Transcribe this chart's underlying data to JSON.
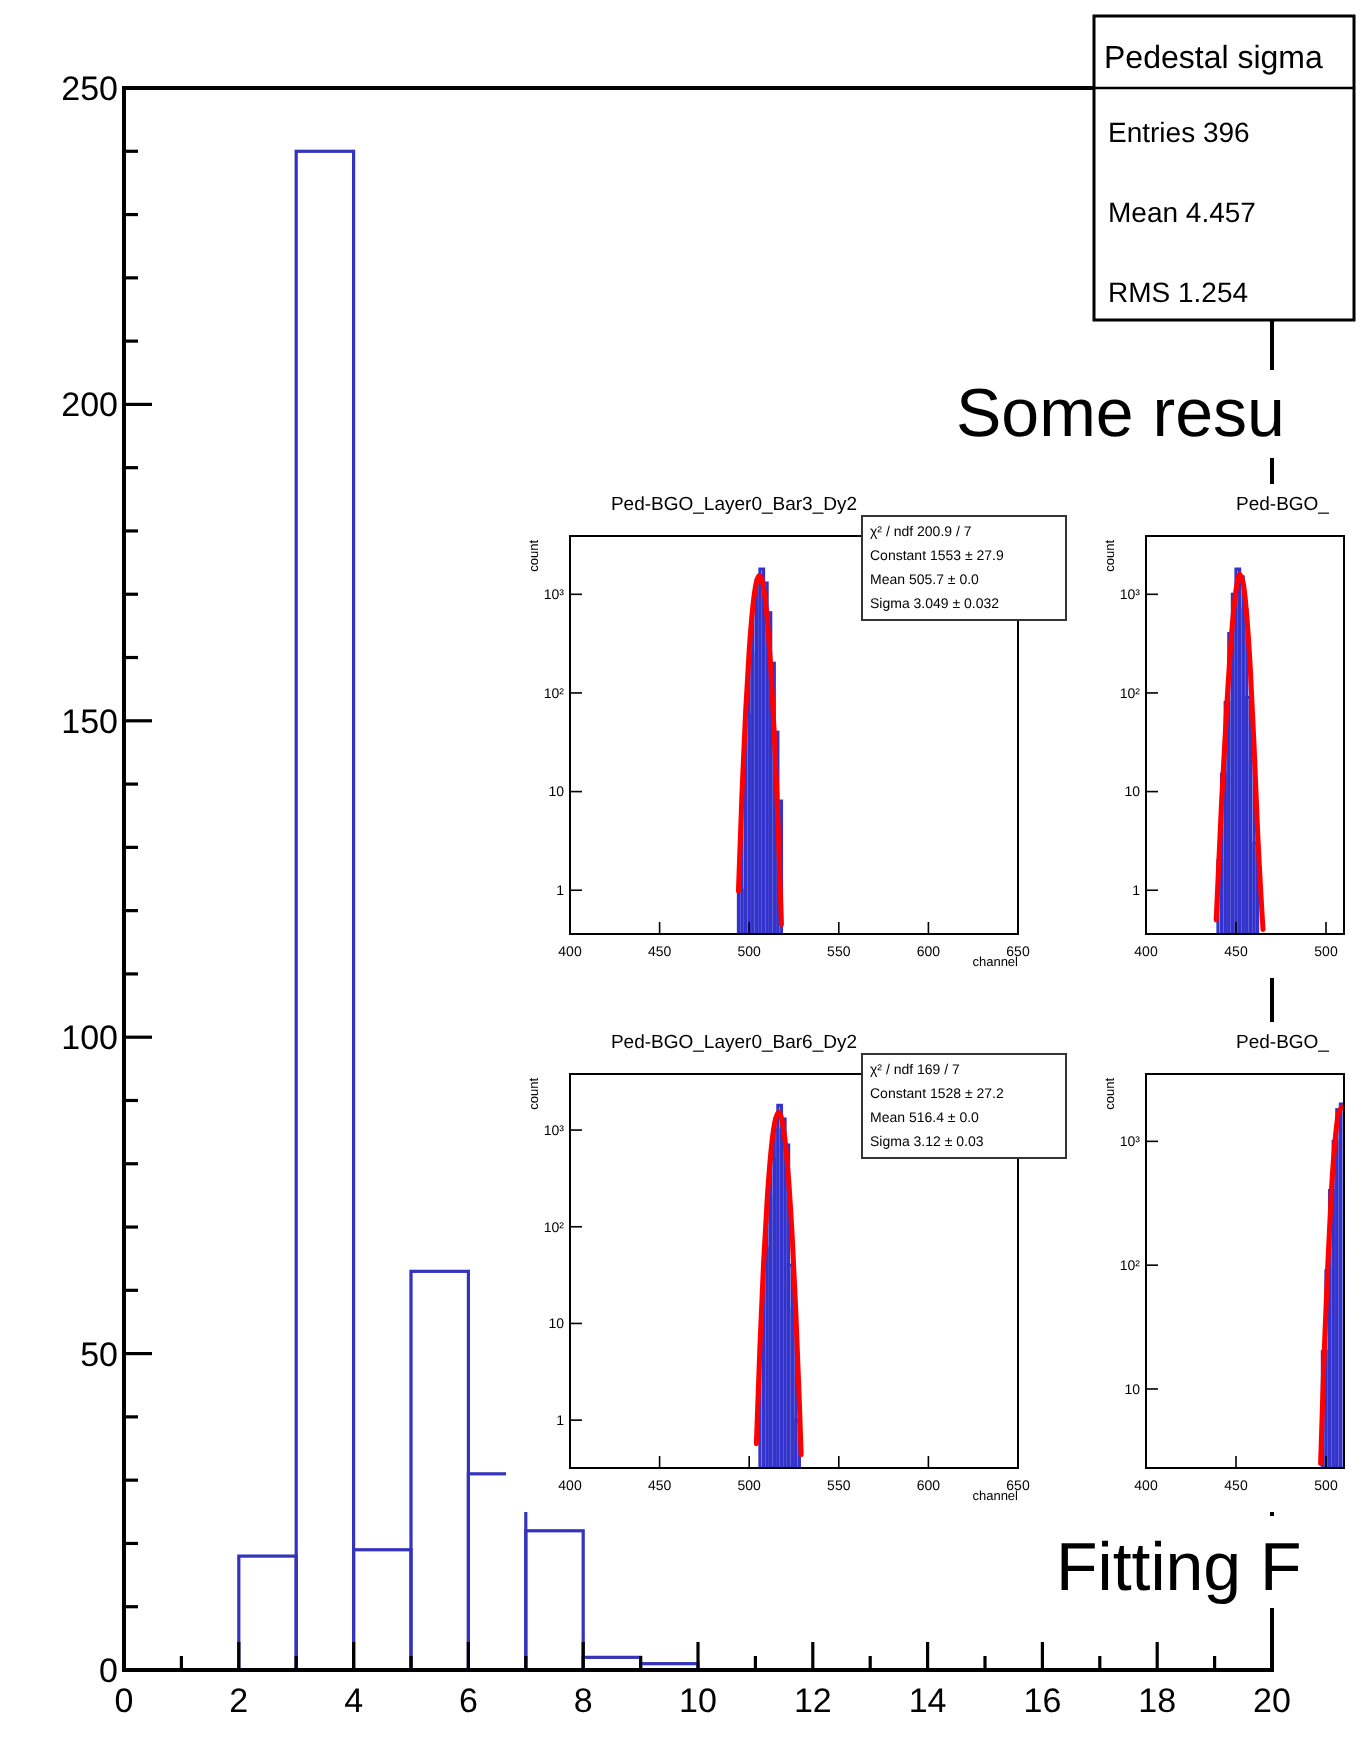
{
  "chart_data": [
    {
      "type": "histogram",
      "title": "Pedestal sigma",
      "color": "#3333bb",
      "bins": [
        0,
        1,
        2,
        3,
        4,
        5,
        6,
        7,
        8,
        9,
        10,
        11,
        12,
        13,
        14,
        15,
        16,
        17,
        18,
        19,
        20
      ],
      "values": [
        0,
        0,
        18,
        240,
        19,
        63,
        31,
        22,
        2,
        1,
        0,
        0,
        0,
        0,
        0,
        0,
        0,
        0,
        0,
        0
      ],
      "xlim": [
        0,
        20
      ],
      "ylim": [
        0,
        250
      ],
      "xticks": [
        0,
        {
          "value": 1,
          "label": null
        },
        2,
        {
          "value": 3,
          "label": null
        },
        4,
        {
          "value": 5,
          "label": null
        },
        6,
        {
          "value": 7,
          "label": null
        },
        8,
        {
          "value": 9,
          "label": null
        },
        10,
        {
          "value": 11,
          "label": null
        },
        12,
        {
          "value": 13,
          "label": null
        },
        14,
        {
          "value": 15,
          "label": null
        },
        16,
        {
          "value": 17,
          "label": null
        },
        18,
        {
          "value": 19,
          "label": null
        },
        20
      ],
      "yticks": [
        0,
        {
          "value": 10,
          "label": null
        },
        {
          "value": 20,
          "label": null
        },
        {
          "value": 30,
          "label": null
        },
        {
          "value": 40,
          "label": null
        },
        50,
        {
          "value": 60,
          "label": null
        },
        {
          "value": 70,
          "label": null
        },
        {
          "value": 80,
          "label": null
        },
        {
          "value": 90,
          "label": null
        },
        100,
        {
          "value": 110,
          "label": null
        },
        {
          "value": 120,
          "label": null
        },
        {
          "value": 130,
          "label": null
        },
        {
          "value": 140,
          "label": null
        },
        150,
        {
          "value": 160,
          "label": null
        },
        {
          "value": 170,
          "label": null
        },
        {
          "value": 180,
          "label": null
        },
        {
          "value": 190,
          "label": null
        },
        200,
        {
          "value": 210,
          "label": null
        },
        {
          "value": 220,
          "label": null
        },
        {
          "value": 230,
          "label": null
        },
        {
          "value": 240,
          "label": null
        },
        250
      ],
      "annotations": [
        "Entries 396",
        "Mean 4.457",
        "RMS 1.254",
        "Some resu",
        "Fitting F"
      ]
    },
    {
      "type": "histogram",
      "title": "Ped-BGO_Layer0_Bar3_Dy2",
      "xlabel": "channel",
      "ylabel": "count",
      "log": "y",
      "xlim": [
        400,
        650
      ],
      "ylim": [
        0.36,
        3900
      ],
      "xticks": [
        400,
        450,
        500,
        550,
        600,
        650
      ],
      "yticks": [
        1,
        10,
        {
          "value": 100,
          "label": "10²"
        },
        {
          "value": 1000,
          "label": "10³"
        }
      ],
      "series": [
        {
          "type": "histogram",
          "color": "#3333cc",
          "bins": [
            494,
            496,
            498,
            500,
            502,
            504,
            506,
            508,
            510,
            512,
            514,
            516,
            518
          ],
          "values": [
            1,
            8,
            60,
            250,
            700,
            1400,
            1800,
            1300,
            650,
            200,
            40,
            8
          ]
        },
        {
          "type": "line",
          "color": "#ff0000",
          "x": [
            494,
            496,
            498,
            500,
            502,
            504,
            505.7,
            507,
            508,
            510,
            512,
            514,
            516,
            518
          ],
          "values": [
            0.98,
            9.9,
            64,
            270,
            744,
            1330,
            1553,
            1418,
            1168,
            574,
            183,
            38,
            5.2,
            0.45
          ]
        }
      ],
      "annotations": [
        "χ² / ndf 200.9 / 7",
        "Constant 1553 ± 27.9",
        "Mean 505.7 ± 0.0",
        "Sigma 3.049 ± 0.032"
      ]
    },
    {
      "type": "histogram",
      "title": "Ped-BGO_Layer0_Bar6_Dy2",
      "xlabel": "channel",
      "ylabel": "count",
      "log": "y",
      "xlim": [
        400,
        650
      ],
      "ylim": [
        0.32,
        3800
      ],
      "xticks": [
        400,
        450,
        500,
        550,
        600,
        650
      ],
      "yticks": [
        1,
        10,
        {
          "value": 100,
          "label": "10²"
        },
        {
          "value": 1000,
          "label": "10³"
        }
      ],
      "series": [
        {
          "type": "histogram",
          "color": "#3333cc",
          "bins": [
            506,
            508,
            510,
            512,
            514,
            516,
            518,
            520,
            522,
            524,
            526,
            528
          ],
          "values": [
            5,
            60,
            200,
            500,
            1000,
            1800,
            1300,
            700,
            40,
            14,
            1
          ]
        },
        {
          "type": "line",
          "color": "#ff0000",
          "x": [
            504,
            506,
            508,
            510,
            512,
            514,
            516.4,
            518,
            520,
            522,
            524,
            526,
            528,
            529
          ],
          "values": [
            0.57,
            5.9,
            41,
            186,
            566,
            1137,
            1528,
            1340,
            785,
            305,
            79,
            13.4,
            1.5,
            0.44
          ]
        }
      ],
      "annotations": [
        "χ² / ndf 169 / 7",
        "Constant 1528 ± 27.2",
        "Mean 516.4 ± 0.0",
        "Sigma 3.12 ± 0.03"
      ]
    },
    {
      "type": "histogram",
      "title": "Ped-BGO_",
      "ylabel": "count",
      "log": "y",
      "xlim": [
        400,
        510
      ],
      "ylim": [
        0.36,
        3900
      ],
      "xticks": [
        400,
        450,
        500
      ],
      "yticks": [
        1,
        10,
        {
          "value": 100,
          "label": "10²"
        },
        {
          "value": 1000,
          "label": "10³"
        }
      ],
      "series": [
        {
          "type": "histogram",
          "color": "#3333cc",
          "bins": [
            440,
            442,
            444,
            446,
            448,
            450,
            452,
            454,
            456,
            458,
            460,
            462
          ],
          "values": [
            2,
            15,
            80,
            400,
            1000,
            1800,
            1500,
            700,
            90,
            20,
            3
          ]
        },
        {
          "type": "line",
          "color": "#ff0000",
          "x": [
            439,
            442,
            445,
            448,
            450,
            452,
            454,
            456,
            458,
            460,
            462,
            465
          ],
          "values": [
            0.5,
            8,
            80,
            500,
            1100,
            1600,
            1300,
            600,
            170,
            30,
            4,
            0.4
          ]
        }
      ]
    },
    {
      "type": "histogram",
      "title": "Ped-BGO_",
      "ylabel": "count",
      "log": "y",
      "xlim": [
        400,
        510
      ],
      "ylim": [
        2.3,
        3500
      ],
      "xticks": [
        400,
        450,
        500
      ],
      "yticks": [
        10,
        {
          "value": 100,
          "label": "10²"
        },
        {
          "value": 1000,
          "label": "10³"
        }
      ],
      "series": [
        {
          "type": "histogram",
          "color": "#3333cc",
          "bins": [
            498,
            500,
            502,
            504,
            506,
            508,
            510
          ],
          "values": [
            20,
            90,
            400,
            1000,
            1800,
            2000
          ]
        },
        {
          "type": "line",
          "color": "#ff0000",
          "x": [
            497,
            499,
            501,
            503,
            505,
            507,
            509
          ],
          "values": [
            2.5,
            20,
            100,
            400,
            1000,
            1700,
            1900
          ]
        }
      ]
    }
  ]
}
